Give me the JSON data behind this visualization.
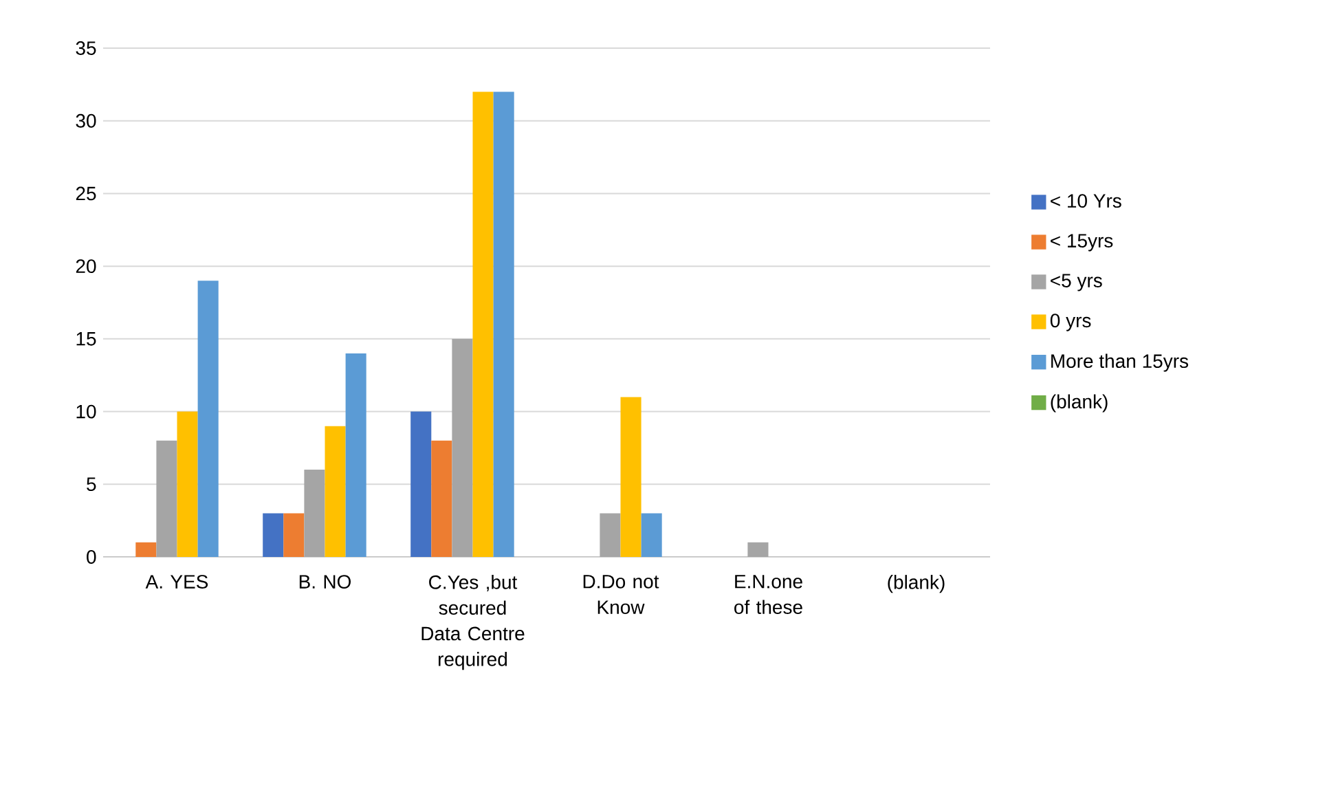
{
  "chart_data": {
    "type": "bar",
    "categories": [
      "A. YES",
      "B. NO",
      "C.Yes ,but secured Data Centre required",
      "D.Do not Know",
      "E.N.one of these",
      "(blank)"
    ],
    "series": [
      {
        "name": "< 10 Yrs",
        "color": "#4472c4",
        "values": [
          null,
          3,
          10,
          null,
          null,
          null
        ]
      },
      {
        "name": "< 15yrs",
        "color": "#ed7d31",
        "values": [
          1,
          3,
          8,
          null,
          null,
          null
        ]
      },
      {
        "name": "<5 yrs",
        "color": "#a5a5a5",
        "values": [
          8,
          6,
          15,
          3,
          1,
          null
        ]
      },
      {
        "name": "0 yrs",
        "color": "#ffc000",
        "values": [
          10,
          9,
          32,
          11,
          null,
          null
        ]
      },
      {
        "name": "More than 15yrs",
        "color": "#5b9bd5",
        "values": [
          19,
          14,
          32,
          3,
          null,
          null
        ]
      },
      {
        "name": "(blank)",
        "color": "#70ad47",
        "values": [
          null,
          null,
          null,
          null,
          null,
          null
        ]
      }
    ],
    "ylim": [
      0,
      35
    ],
    "yticks": [
      0,
      5,
      10,
      15,
      20,
      25,
      30,
      35
    ],
    "grid": "y",
    "legend": "right"
  }
}
